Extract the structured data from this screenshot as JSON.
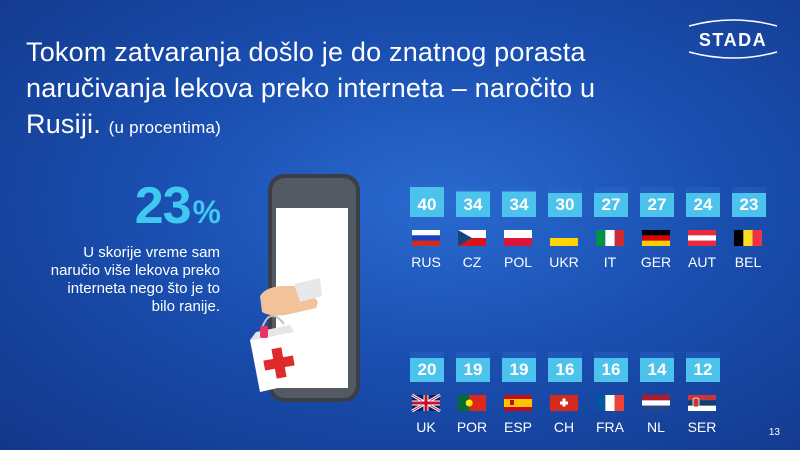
{
  "title": {
    "main": "Tokom zatvaranja došlo je do znatnog porasta naručivanja lekova preko interneta – naročito u Rusiji.",
    "sub": "(u procentima)"
  },
  "logo": {
    "text": "STADA"
  },
  "highlight": {
    "value": "23",
    "unit": "%"
  },
  "statement": "U skorije vreme sam naručio više lekova preko interneta nego što je to bilo ranije.",
  "page_number": "13",
  "colors": {
    "accent": "#3ec8f2",
    "box": "#4cc3ec",
    "background": "#1a4fb0"
  },
  "chart_data": {
    "type": "bar",
    "categories": [
      "RUS",
      "CZ",
      "POL",
      "UKR",
      "IT",
      "GER",
      "AUT",
      "BEL",
      "UK",
      "POR",
      "ESP",
      "CH",
      "FRA",
      "NL",
      "SER"
    ],
    "values": [
      40,
      34,
      34,
      30,
      27,
      27,
      24,
      23,
      20,
      19,
      19,
      16,
      16,
      14,
      12
    ],
    "flags": [
      "flag-russia",
      "flag-czechia",
      "flag-poland",
      "flag-ukraine",
      "flag-italy",
      "flag-germany",
      "flag-austria",
      "flag-belgium",
      "flag-uk",
      "flag-portugal",
      "flag-spain",
      "flag-switzerland",
      "flag-france",
      "flag-netherlands",
      "flag-serbia"
    ],
    "unit": "%"
  }
}
